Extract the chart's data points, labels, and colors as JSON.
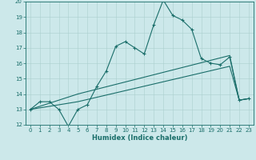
{
  "title": "",
  "xlabel": "Humidex (Indice chaleur)",
  "bg_color": "#cce8ea",
  "line_color": "#1a6e6a",
  "grid_color": "#aacfcf",
  "xlim": [
    -0.5,
    23.5
  ],
  "ylim": [
    12,
    20
  ],
  "yticks": [
    12,
    13,
    14,
    15,
    16,
    17,
    18,
    19,
    20
  ],
  "xticks": [
    0,
    1,
    2,
    3,
    4,
    5,
    6,
    7,
    8,
    9,
    10,
    11,
    12,
    13,
    14,
    15,
    16,
    17,
    18,
    19,
    20,
    21,
    22,
    23
  ],
  "line1_x": [
    0,
    1,
    2,
    3,
    4,
    5,
    6,
    7,
    8,
    9,
    10,
    11,
    12,
    13,
    14,
    15,
    16,
    17,
    18,
    19,
    20,
    21,
    22,
    23
  ],
  "line1_y": [
    13.0,
    13.5,
    13.5,
    13.0,
    11.9,
    13.0,
    13.3,
    14.5,
    15.5,
    17.1,
    17.4,
    17.0,
    16.6,
    18.5,
    20.1,
    19.1,
    18.8,
    18.2,
    16.3,
    16.0,
    15.9,
    16.4,
    13.6,
    13.7
  ],
  "line2_x": [
    0,
    5,
    21,
    22,
    23
  ],
  "line2_y": [
    13.0,
    14.0,
    16.5,
    13.6,
    13.7
  ],
  "line3_x": [
    0,
    5,
    21,
    22,
    23
  ],
  "line3_y": [
    13.0,
    13.5,
    15.8,
    13.6,
    13.7
  ],
  "marker_size": 2.5,
  "linewidth": 0.8,
  "tick_fontsize": 5.0,
  "xlabel_fontsize": 6.0
}
